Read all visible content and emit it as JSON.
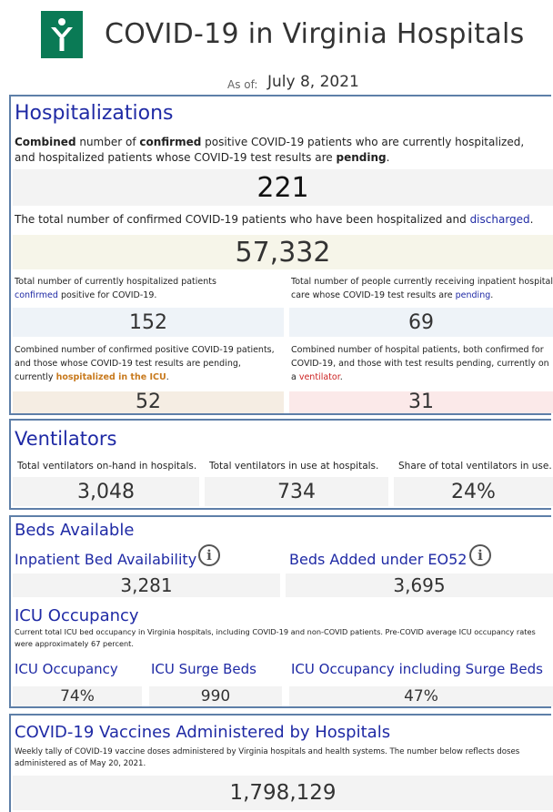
{
  "header": {
    "title": "COVID-19 in Virginia Hospitals",
    "as_of_label": "As of:",
    "as_of_date": "July 8, 2021"
  },
  "hospitalizations": {
    "title": "Hospitalizations",
    "combined_desc_1": "Combined",
    "combined_desc_2": " number of ",
    "combined_desc_3": "confirmed",
    "combined_desc_4": " positive COVID-19 patients who are currently hospitalized, and hospitalized patients whose COVID-19 test results are ",
    "combined_desc_5": "pending",
    "combined_desc_6": ".",
    "combined_value": "221",
    "discharged_desc_1": "The total number of confirmed COVID-19 patients who have been hospitalized and ",
    "discharged_desc_2": "discharged",
    "discharged_desc_3": ".",
    "discharged_value": "57,332",
    "confirmed_desc_1": "Total number of currently hospitalized patients ",
    "confirmed_desc_2": "confirmed",
    "confirmed_desc_3": " positive for COVID-19.",
    "confirmed_value": "152",
    "pending_desc_1": "Total number of people currently receiving inpatient hospital care whose COVID-19 test results are ",
    "pending_desc_2": "pending",
    "pending_desc_3": ".",
    "pending_value": "69",
    "icu_desc_1": "Combined number of confirmed positive COVID-19 patients, and those whose COVID-19 test results are pending, currently ",
    "icu_desc_2": "hospitalized in the ICU",
    "icu_desc_3": ".",
    "icu_value": "52",
    "vent_desc_1": "Combined number of hospital patients, both confirmed for COVID-19, and those with test results pending, currently on a ",
    "vent_desc_2": "ventilator",
    "vent_desc_3": ".",
    "vent_value": "31"
  },
  "ventilators": {
    "title": "Ventilators",
    "onhand_label": "Total ventilators on-hand in hospitals.",
    "onhand_value": "3,048",
    "inuse_label": "Total ventilators in use at hospitals.",
    "inuse_value": "734",
    "share_label": "Share of total ventilators in use.",
    "share_value": "24%"
  },
  "beds": {
    "title": "Beds Available",
    "inpatient_label": "Inpatient Bed Availability",
    "inpatient_value": "3,281",
    "eo52_label": "Beds Added under EO52",
    "eo52_value": "3,695",
    "info_icon": "i"
  },
  "icu": {
    "title": "ICU Occupancy",
    "desc": "Current total ICU bed occupancy in Virginia hospitals, including COVID-19 and non-COVID patients. Pre-COVID average ICU occupancy rates were approximately 67 percent.",
    "occupancy_label": "ICU Occupancy",
    "occupancy_value": "74%",
    "surge_label": "ICU Surge Beds",
    "surge_value": "990",
    "incl_surge_label": "ICU Occupancy including Surge Beds",
    "incl_surge_value": "47%"
  },
  "vaccines": {
    "title": "COVID-19 Vaccines Administered by Hospitals",
    "desc": "Weekly tally of COVID-19 vaccine doses administered by Virginia hospitals and health systems. The number below reflects doses administered as of May 20, 2021.",
    "value": "1,798,129"
  },
  "colors": {
    "brand_green": "#0a7a55",
    "heading_blue": "#1f2aa5",
    "panel_border": "#5e7fa8",
    "icu_orange": "#c87a1e",
    "ventilator_red": "#cc2222"
  }
}
